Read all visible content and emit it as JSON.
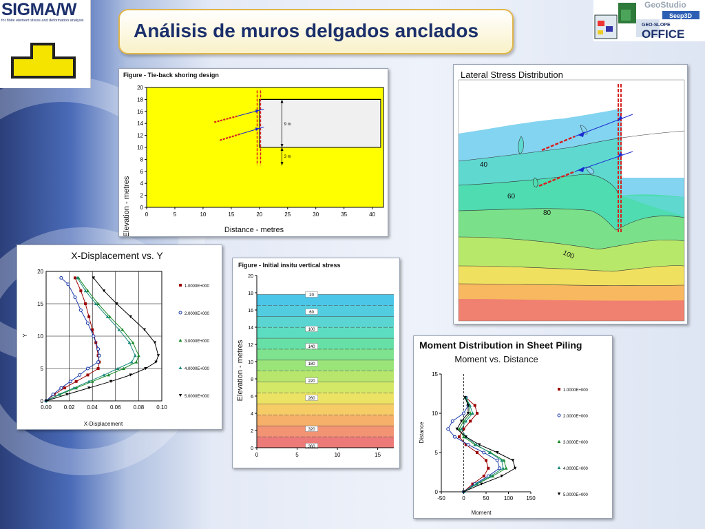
{
  "slide": {
    "title": "Análisis de muros delgados anclados",
    "logo_left": {
      "name": "SIGMA/W",
      "subtitle": "for finite element stress and deformation analysis"
    },
    "logo_right": {
      "brand": "GeoStudio",
      "product": "Seep3D",
      "suite_top": "GEO-SLOPE",
      "suite": "OFFICE"
    }
  },
  "colors": {
    "title": "#1b2f6b",
    "title_border": "#e0b54a",
    "soil": "#ffff00",
    "anchor": "#d62020"
  },
  "chart_data": [
    {
      "type": "diagram",
      "title": "Figure - Tie-back shoring design",
      "xlabel": "Distance - metres",
      "ylabel": "Elevation - metres",
      "xlim": [
        0,
        42
      ],
      "ylim": [
        0,
        20
      ],
      "xticks": [
        0,
        5,
        10,
        15,
        20,
        25,
        30,
        35,
        40
      ],
      "yticks": [
        0,
        2,
        4,
        6,
        8,
        10,
        12,
        14,
        16,
        18,
        20
      ],
      "annotations": [
        "9 m",
        "3 m"
      ]
    },
    {
      "type": "line",
      "title": "X-Displacement vs. Y",
      "xlabel": "X-Displacement",
      "ylabel": "Y",
      "xlim": [
        0,
        0.1
      ],
      "ylim": [
        0,
        20
      ],
      "xticks": [
        "0.00",
        "0.02",
        "0.04",
        "0.06",
        "0.08",
        "0.10"
      ],
      "yticks": [
        0,
        5,
        10,
        15,
        20
      ],
      "legend_position": "right",
      "series": [
        {
          "name": "1.0000E+000",
          "color": "#9b0000",
          "x": [
            0,
            0.007,
            0.016,
            0.026,
            0.036,
            0.045,
            0.046,
            0.045,
            0.043,
            0.04,
            0.037,
            0.034,
            0.03,
            0.025
          ],
          "y": [
            0,
            1,
            2,
            3,
            4,
            5,
            6,
            7,
            9,
            11,
            13,
            15,
            17,
            19
          ]
        },
        {
          "name": "2.0000E+000",
          "color": "#1a3aa8",
          "x": [
            0,
            0.006,
            0.013,
            0.021,
            0.029,
            0.036,
            0.045,
            0.046,
            0.045,
            0.041,
            0.036,
            0.03,
            0.025,
            0.019,
            0.013
          ],
          "y": [
            0,
            1,
            2,
            3,
            4,
            5,
            6,
            7,
            8,
            10,
            12,
            14,
            16,
            18,
            19
          ]
        },
        {
          "name": "3.0000E+000",
          "color": "#1a8a2a",
          "x": [
            0,
            0.012,
            0.026,
            0.04,
            0.054,
            0.067,
            0.078,
            0.08,
            0.075,
            0.066,
            0.055,
            0.045,
            0.036,
            0.028
          ],
          "y": [
            0,
            1,
            2,
            3,
            4,
            5,
            6,
            7,
            9,
            11,
            13,
            15,
            17,
            19
          ]
        },
        {
          "name": "4.0000E+000",
          "color": "#1a8a7a",
          "x": [
            0,
            0.011,
            0.024,
            0.037,
            0.05,
            0.062,
            0.074,
            0.077,
            0.072,
            0.063,
            0.053,
            0.043,
            0.034,
            0.027
          ],
          "y": [
            0,
            1,
            2,
            3,
            4,
            5,
            6,
            7,
            9,
            11,
            13,
            15,
            17,
            19
          ]
        },
        {
          "name": "5.0000E+000",
          "color": "#000000",
          "x": [
            0,
            0.018,
            0.037,
            0.056,
            0.073,
            0.086,
            0.095,
            0.097,
            0.094,
            0.085,
            0.073,
            0.061,
            0.05,
            0.041
          ],
          "y": [
            0,
            1,
            2,
            3,
            4,
            5,
            6,
            7,
            9,
            11,
            13,
            15,
            17,
            19
          ]
        }
      ]
    },
    {
      "type": "heatmap",
      "title": "Figure - Initial insitu vertical stress",
      "ylabel": "Elevation - metres",
      "xlim": [
        0,
        17
      ],
      "ylim": [
        0,
        20
      ],
      "xticks": [
        0,
        5,
        10,
        15
      ],
      "yticks": [
        0,
        2,
        4,
        6,
        8,
        10,
        12,
        14,
        16,
        18,
        20
      ],
      "contour_labels": [
        "20",
        "60",
        "100",
        "140",
        "180",
        "220",
        "260",
        "320",
        "360"
      ],
      "contour_elevations": [
        17.8,
        15.8,
        13.8,
        11.8,
        9.8,
        7.8,
        5.8,
        2.2,
        0.2
      ]
    },
    {
      "type": "heatmap",
      "title": "Lateral Stress Distribution",
      "contour_labels": [
        "40",
        "60",
        "80",
        "100"
      ]
    },
    {
      "type": "line",
      "title": "Moment Distribution in Sheet Piling",
      "subtitle": "Moment vs. Distance",
      "xlabel": "Moment",
      "ylabel": "Distance",
      "xlim": [
        -50,
        150
      ],
      "ylim": [
        0,
        15
      ],
      "xticks": [
        -50,
        0,
        50,
        100,
        150
      ],
      "yticks": [
        0,
        5,
        10,
        15
      ],
      "legend_position": "right",
      "series": [
        {
          "name": "1.0000E+000",
          "color": "#9b0000",
          "x": [
            0,
            20,
            45,
            55,
            50,
            30,
            5,
            -10,
            0,
            15,
            30,
            25,
            5
          ],
          "y": [
            0,
            1,
            2,
            3,
            4,
            5,
            6,
            7,
            8,
            9,
            10,
            11,
            12
          ]
        },
        {
          "name": "2.0000E+000",
          "color": "#1a3aa8",
          "x": [
            0,
            25,
            55,
            80,
            75,
            45,
            10,
            -20,
            -35,
            -25,
            0,
            10,
            5
          ],
          "y": [
            0,
            1,
            2,
            3,
            4,
            5,
            6,
            7,
            8,
            9,
            10,
            11,
            12
          ]
        },
        {
          "name": "3.0000E+000",
          "color": "#1a8a2a",
          "x": [
            0,
            30,
            65,
            95,
            90,
            60,
            25,
            0,
            -10,
            0,
            15,
            12,
            4
          ],
          "y": [
            0,
            1,
            2,
            3,
            4,
            5,
            6,
            7,
            8,
            9,
            10,
            11,
            12
          ]
        },
        {
          "name": "4.0000E+000",
          "color": "#1a8a7a",
          "x": [
            0,
            28,
            60,
            88,
            85,
            58,
            28,
            5,
            -5,
            5,
            20,
            14,
            5
          ],
          "y": [
            0,
            1,
            2,
            3,
            4,
            5,
            6,
            7,
            8,
            9,
            10,
            11,
            12
          ]
        },
        {
          "name": "5.0000E+000",
          "color": "#000000",
          "x": [
            0,
            40,
            85,
            115,
            110,
            75,
            35,
            5,
            -15,
            -5,
            10,
            10,
            3
          ],
          "y": [
            0,
            1,
            2,
            3,
            4,
            5,
            6,
            7,
            8,
            9,
            10,
            11,
            12
          ]
        }
      ]
    }
  ]
}
